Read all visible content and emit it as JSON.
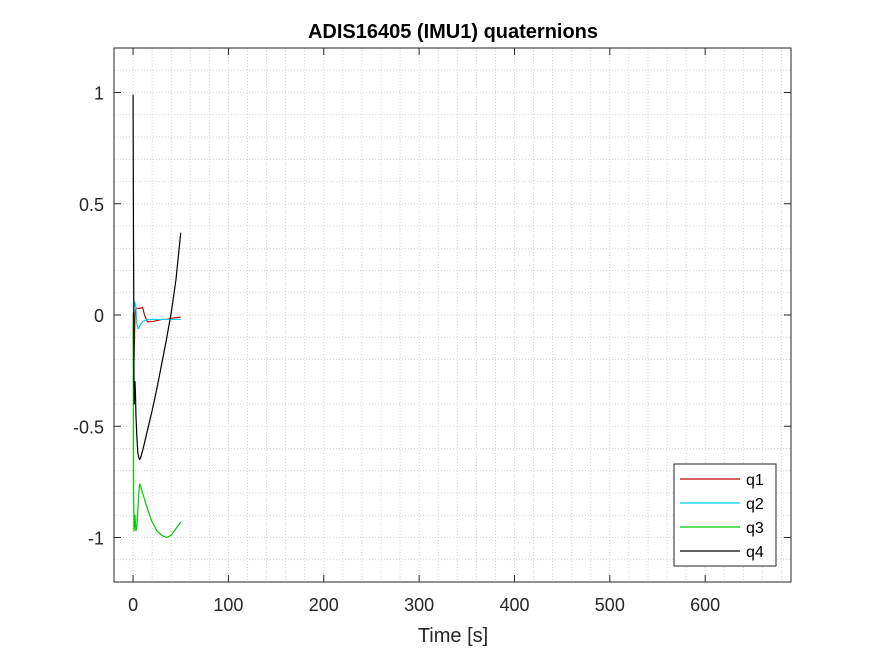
{
  "chart_data": {
    "type": "line",
    "title": "ADIS16405 (IMU1) quaternions",
    "xlabel": "Time [s]",
    "ylabel": "",
    "xlim": [
      -20,
      690
    ],
    "ylim": [
      -1.2,
      1.2
    ],
    "xticks": [
      0,
      100,
      200,
      300,
      400,
      500,
      600
    ],
    "xtick_labels": [
      "0",
      "100",
      "200",
      "300",
      "400",
      "500",
      "600"
    ],
    "yticks": [
      -1,
      -0.5,
      0,
      0.5,
      1
    ],
    "ytick_labels": [
      "-1",
      "-0.5",
      "0",
      "0.5",
      "1"
    ],
    "grid": "minor dotted",
    "legend_position": "bottom-right",
    "series": [
      {
        "name": "q1",
        "color": "#c00000",
        "x": [
          0,
          0.3,
          0.6,
          1,
          1.5,
          2,
          2.5,
          3,
          5,
          8,
          10,
          12,
          15,
          20,
          25,
          30,
          35,
          40,
          45,
          50
        ],
        "y": [
          0,
          -0.08,
          -0.15,
          -0.2,
          -0.1,
          0,
          0.02,
          0.03,
          0.03,
          0.03,
          0.035,
          0.0,
          -0.03,
          -0.03,
          -0.025,
          -0.02,
          -0.02,
          -0.015,
          -0.012,
          -0.01
        ]
      },
      {
        "name": "q2",
        "color": "#00d0f0",
        "x": [
          0,
          0.5,
          1,
          1.5,
          2,
          3,
          4,
          5,
          6,
          8,
          10,
          15,
          20,
          30,
          40,
          50
        ],
        "y": [
          0,
          0.02,
          0.04,
          0.06,
          0.055,
          0.03,
          -0.04,
          -0.06,
          -0.06,
          -0.04,
          -0.03,
          -0.02,
          -0.02,
          -0.02,
          -0.02,
          -0.02
        ]
      },
      {
        "name": "q3",
        "color": "#00cc00",
        "x": [
          0,
          0.3,
          0.6,
          1,
          1.5,
          2,
          3,
          4,
          5,
          6,
          7,
          8,
          10,
          15,
          20,
          25,
          30,
          35,
          40,
          45,
          50
        ],
        "y": [
          0,
          -0.4,
          -0.8,
          -0.97,
          -0.95,
          -0.9,
          -0.97,
          -0.95,
          -0.88,
          -0.8,
          -0.76,
          -0.77,
          -0.8,
          -0.87,
          -0.93,
          -0.97,
          -0.99,
          -1.0,
          -0.99,
          -0.96,
          -0.93
        ]
      },
      {
        "name": "q4",
        "color": "#000000",
        "x": [
          0,
          0.2,
          0.4,
          0.7,
          1,
          1.3,
          1.6,
          2,
          2.5,
          3,
          4,
          5,
          6,
          7,
          8,
          10,
          15,
          20,
          25,
          30,
          35,
          40,
          45,
          50
        ],
        "y": [
          0.99,
          0.7,
          0.4,
          0.1,
          -0.3,
          -0.4,
          -0.35,
          -0.3,
          -0.35,
          -0.45,
          -0.55,
          -0.62,
          -0.64,
          -0.65,
          -0.64,
          -0.61,
          -0.52,
          -0.43,
          -0.33,
          -0.22,
          -0.11,
          0.01,
          0.16,
          0.37
        ]
      }
    ]
  }
}
